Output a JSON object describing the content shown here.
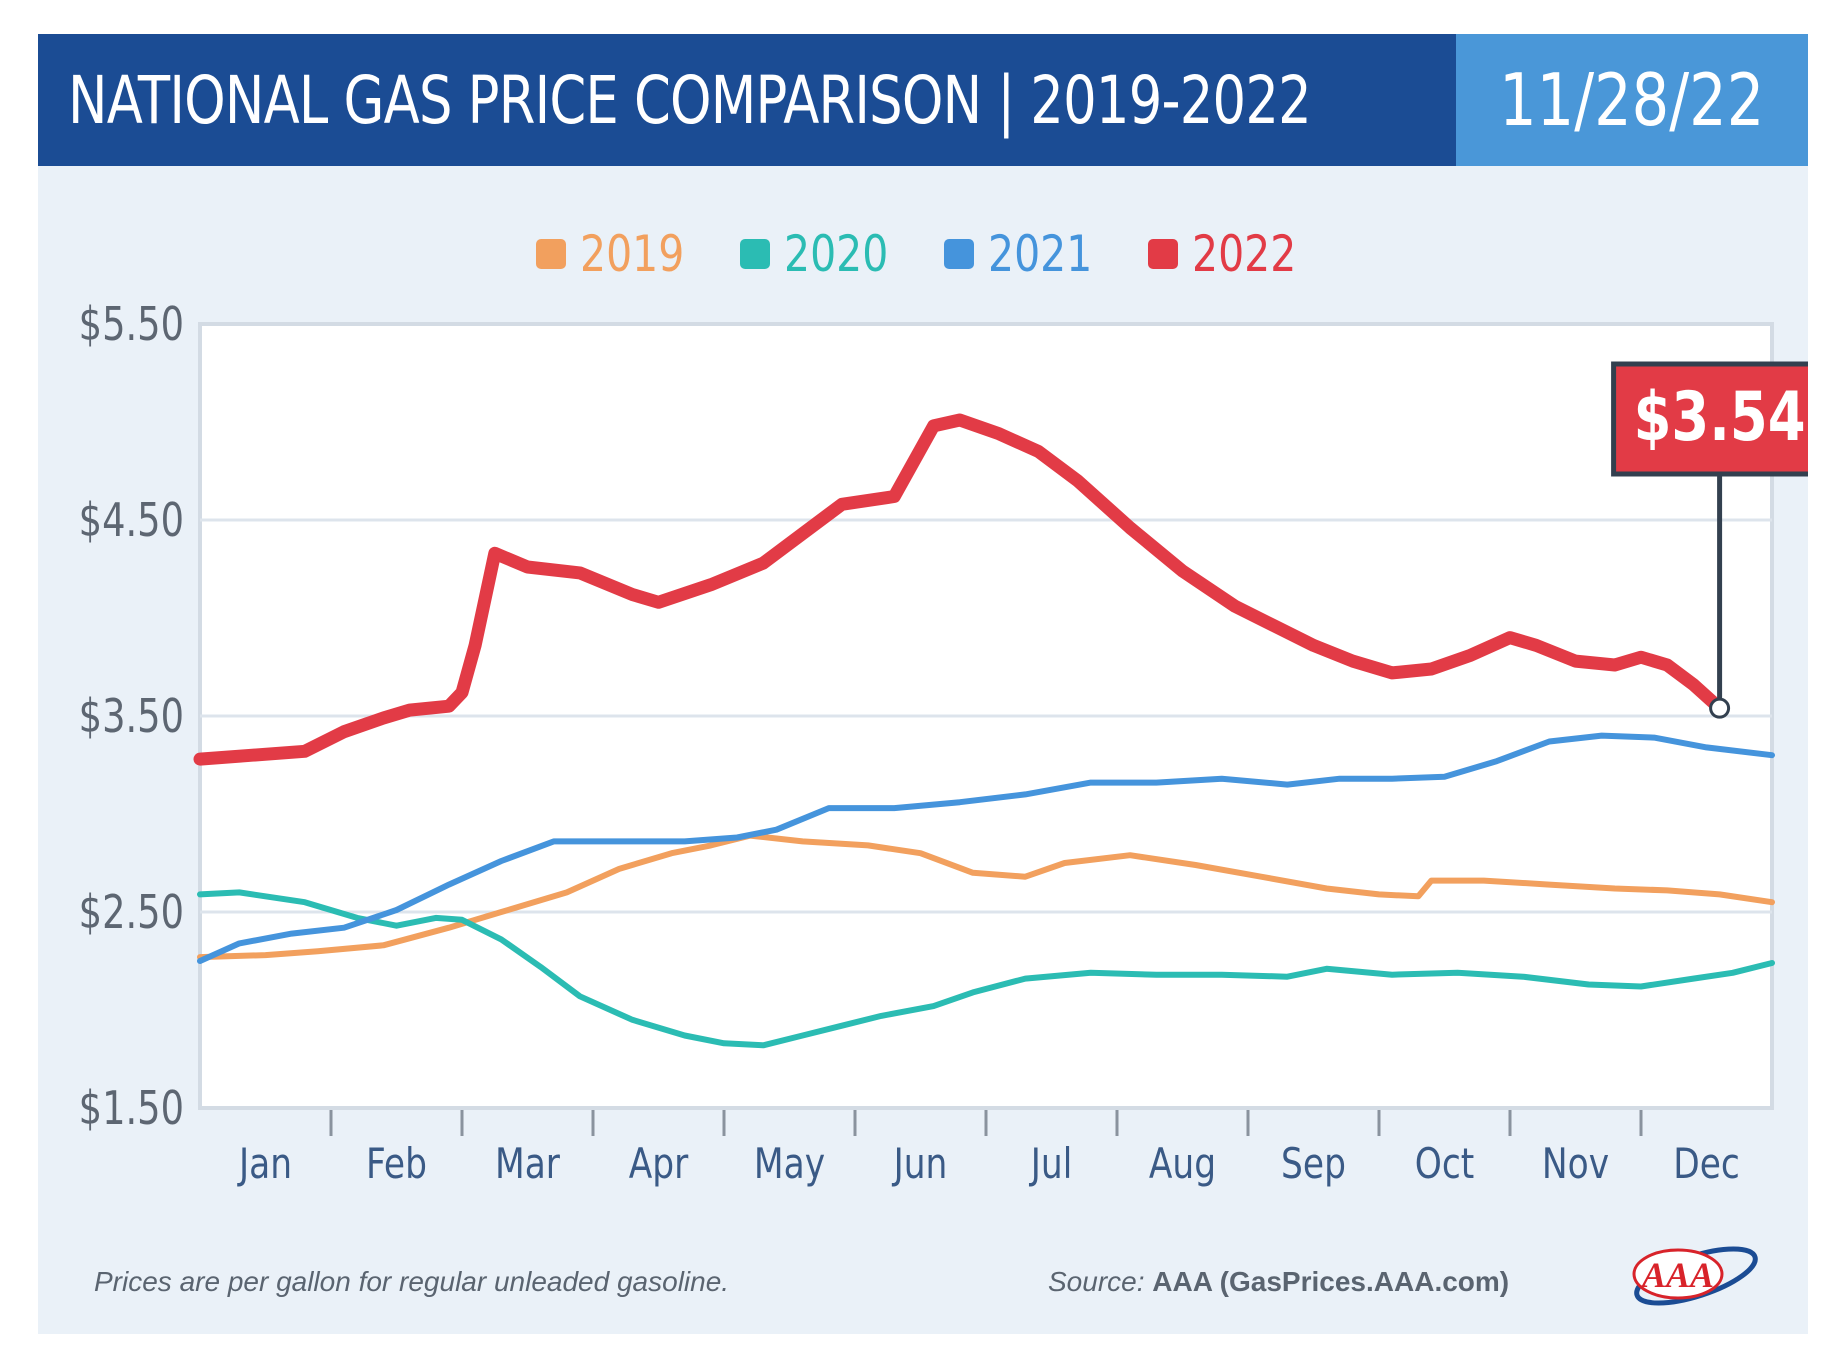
{
  "header": {
    "title": "NATIONAL GAS PRICE COMPARISON | 2019-2022",
    "date": "11/28/22"
  },
  "colors": {
    "header_dark": "#1b4c94",
    "header_light": "#4a97d8",
    "card_bg": "#eaf1f8",
    "s2019": "#f2a05e",
    "s2020": "#2bbcb3",
    "s2021": "#4594dc",
    "s2022": "#e23b46",
    "callout_border": "#33404f"
  },
  "footer": {
    "note": "Prices are per gallon for regular unleaded gasoline.",
    "source_label": "Source:",
    "source_value": "AAA (GasPrices.AAA.com)",
    "logo_text": "AAA"
  },
  "chart_data": {
    "type": "line",
    "title": "NATIONAL GAS PRICE COMPARISON | 2019-2022",
    "xlabel": "",
    "ylabel": "",
    "x_unit": "month (0 = start of Jan, 12 = end of Dec)",
    "xlim": [
      0,
      12
    ],
    "ylim": [
      1.5,
      5.5
    ],
    "y_ticks": [
      "$5.50",
      "$4.50",
      "$3.50",
      "$2.50",
      "$1.50"
    ],
    "y_tick_values": [
      5.5,
      4.5,
      3.5,
      2.5,
      1.5
    ],
    "categories": [
      "Jan",
      "Feb",
      "Mar",
      "Apr",
      "May",
      "Jun",
      "Jul",
      "Aug",
      "Sep",
      "Oct",
      "Nov",
      "Dec"
    ],
    "grid": true,
    "legend_position": "top-center",
    "series": [
      {
        "name": "2019",
        "color": "#f2a05e",
        "points": [
          [
            0,
            2.27
          ],
          [
            0.5,
            2.28
          ],
          [
            0.9,
            2.3
          ],
          [
            1.4,
            2.33
          ],
          [
            1.9,
            2.42
          ],
          [
            2.3,
            2.5
          ],
          [
            2.8,
            2.6
          ],
          [
            3.2,
            2.72
          ],
          [
            3.6,
            2.8
          ],
          [
            3.9,
            2.84
          ],
          [
            4.2,
            2.89
          ],
          [
            4.6,
            2.86
          ],
          [
            5.1,
            2.84
          ],
          [
            5.5,
            2.8
          ],
          [
            5.9,
            2.7
          ],
          [
            6.3,
            2.68
          ],
          [
            6.6,
            2.75
          ],
          [
            7.1,
            2.79
          ],
          [
            7.6,
            2.74
          ],
          [
            8.1,
            2.68
          ],
          [
            8.6,
            2.62
          ],
          [
            9.0,
            2.59
          ],
          [
            9.3,
            2.58
          ],
          [
            9.4,
            2.66
          ],
          [
            9.8,
            2.66
          ],
          [
            10.3,
            2.64
          ],
          [
            10.8,
            2.62
          ],
          [
            11.2,
            2.61
          ],
          [
            11.6,
            2.59
          ],
          [
            12.0,
            2.55
          ]
        ]
      },
      {
        "name": "2020",
        "color": "#2bbcb3",
        "points": [
          [
            0,
            2.59
          ],
          [
            0.3,
            2.6
          ],
          [
            0.8,
            2.55
          ],
          [
            1.2,
            2.47
          ],
          [
            1.5,
            2.43
          ],
          [
            1.8,
            2.47
          ],
          [
            2.0,
            2.46
          ],
          [
            2.3,
            2.36
          ],
          [
            2.6,
            2.22
          ],
          [
            2.9,
            2.07
          ],
          [
            3.3,
            1.95
          ],
          [
            3.7,
            1.87
          ],
          [
            4.0,
            1.83
          ],
          [
            4.3,
            1.82
          ],
          [
            4.6,
            1.87
          ],
          [
            4.9,
            1.92
          ],
          [
            5.2,
            1.97
          ],
          [
            5.6,
            2.02
          ],
          [
            5.9,
            2.09
          ],
          [
            6.3,
            2.16
          ],
          [
            6.8,
            2.19
          ],
          [
            7.3,
            2.18
          ],
          [
            7.8,
            2.18
          ],
          [
            8.3,
            2.17
          ],
          [
            8.6,
            2.21
          ],
          [
            9.1,
            2.18
          ],
          [
            9.6,
            2.19
          ],
          [
            10.1,
            2.17
          ],
          [
            10.6,
            2.13
          ],
          [
            11.0,
            2.12
          ],
          [
            11.4,
            2.16
          ],
          [
            11.7,
            2.19
          ],
          [
            12.0,
            2.24
          ]
        ]
      },
      {
        "name": "2021",
        "color": "#4594dc",
        "points": [
          [
            0,
            2.25
          ],
          [
            0.3,
            2.34
          ],
          [
            0.7,
            2.39
          ],
          [
            1.1,
            2.42
          ],
          [
            1.5,
            2.51
          ],
          [
            1.9,
            2.64
          ],
          [
            2.3,
            2.76
          ],
          [
            2.7,
            2.86
          ],
          [
            3.2,
            2.86
          ],
          [
            3.7,
            2.86
          ],
          [
            4.1,
            2.88
          ],
          [
            4.4,
            2.92
          ],
          [
            4.8,
            3.03
          ],
          [
            5.3,
            3.03
          ],
          [
            5.8,
            3.06
          ],
          [
            6.3,
            3.1
          ],
          [
            6.8,
            3.16
          ],
          [
            7.3,
            3.16
          ],
          [
            7.8,
            3.18
          ],
          [
            8.3,
            3.15
          ],
          [
            8.7,
            3.18
          ],
          [
            9.1,
            3.18
          ],
          [
            9.5,
            3.19
          ],
          [
            9.9,
            3.27
          ],
          [
            10.3,
            3.37
          ],
          [
            10.7,
            3.4
          ],
          [
            11.1,
            3.39
          ],
          [
            11.5,
            3.34
          ],
          [
            12.0,
            3.3
          ]
        ]
      },
      {
        "name": "2022",
        "color": "#e23b46",
        "points": [
          [
            0,
            3.28
          ],
          [
            0.4,
            3.3
          ],
          [
            0.8,
            3.32
          ],
          [
            1.1,
            3.42
          ],
          [
            1.4,
            3.49
          ],
          [
            1.6,
            3.53
          ],
          [
            1.9,
            3.55
          ],
          [
            2.0,
            3.62
          ],
          [
            2.1,
            3.86
          ],
          [
            2.25,
            4.33
          ],
          [
            2.5,
            4.26
          ],
          [
            2.9,
            4.23
          ],
          [
            3.3,
            4.12
          ],
          [
            3.5,
            4.08
          ],
          [
            3.9,
            4.17
          ],
          [
            4.3,
            4.28
          ],
          [
            4.6,
            4.43
          ],
          [
            4.9,
            4.58
          ],
          [
            5.3,
            4.62
          ],
          [
            5.6,
            4.98
          ],
          [
            5.8,
            5.01
          ],
          [
            6.1,
            4.94
          ],
          [
            6.4,
            4.85
          ],
          [
            6.7,
            4.7
          ],
          [
            7.1,
            4.46
          ],
          [
            7.5,
            4.24
          ],
          [
            7.9,
            4.06
          ],
          [
            8.2,
            3.96
          ],
          [
            8.5,
            3.86
          ],
          [
            8.8,
            3.78
          ],
          [
            9.1,
            3.72
          ],
          [
            9.4,
            3.74
          ],
          [
            9.7,
            3.81
          ],
          [
            10.0,
            3.9
          ],
          [
            10.2,
            3.86
          ],
          [
            10.5,
            3.78
          ],
          [
            10.8,
            3.76
          ],
          [
            11.0,
            3.8
          ],
          [
            11.2,
            3.76
          ],
          [
            11.4,
            3.66
          ],
          [
            11.6,
            3.54
          ]
        ]
      }
    ],
    "annotations": [
      {
        "text": "$3.54",
        "x": 11.6,
        "y": 3.54,
        "series": "2022"
      }
    ]
  }
}
